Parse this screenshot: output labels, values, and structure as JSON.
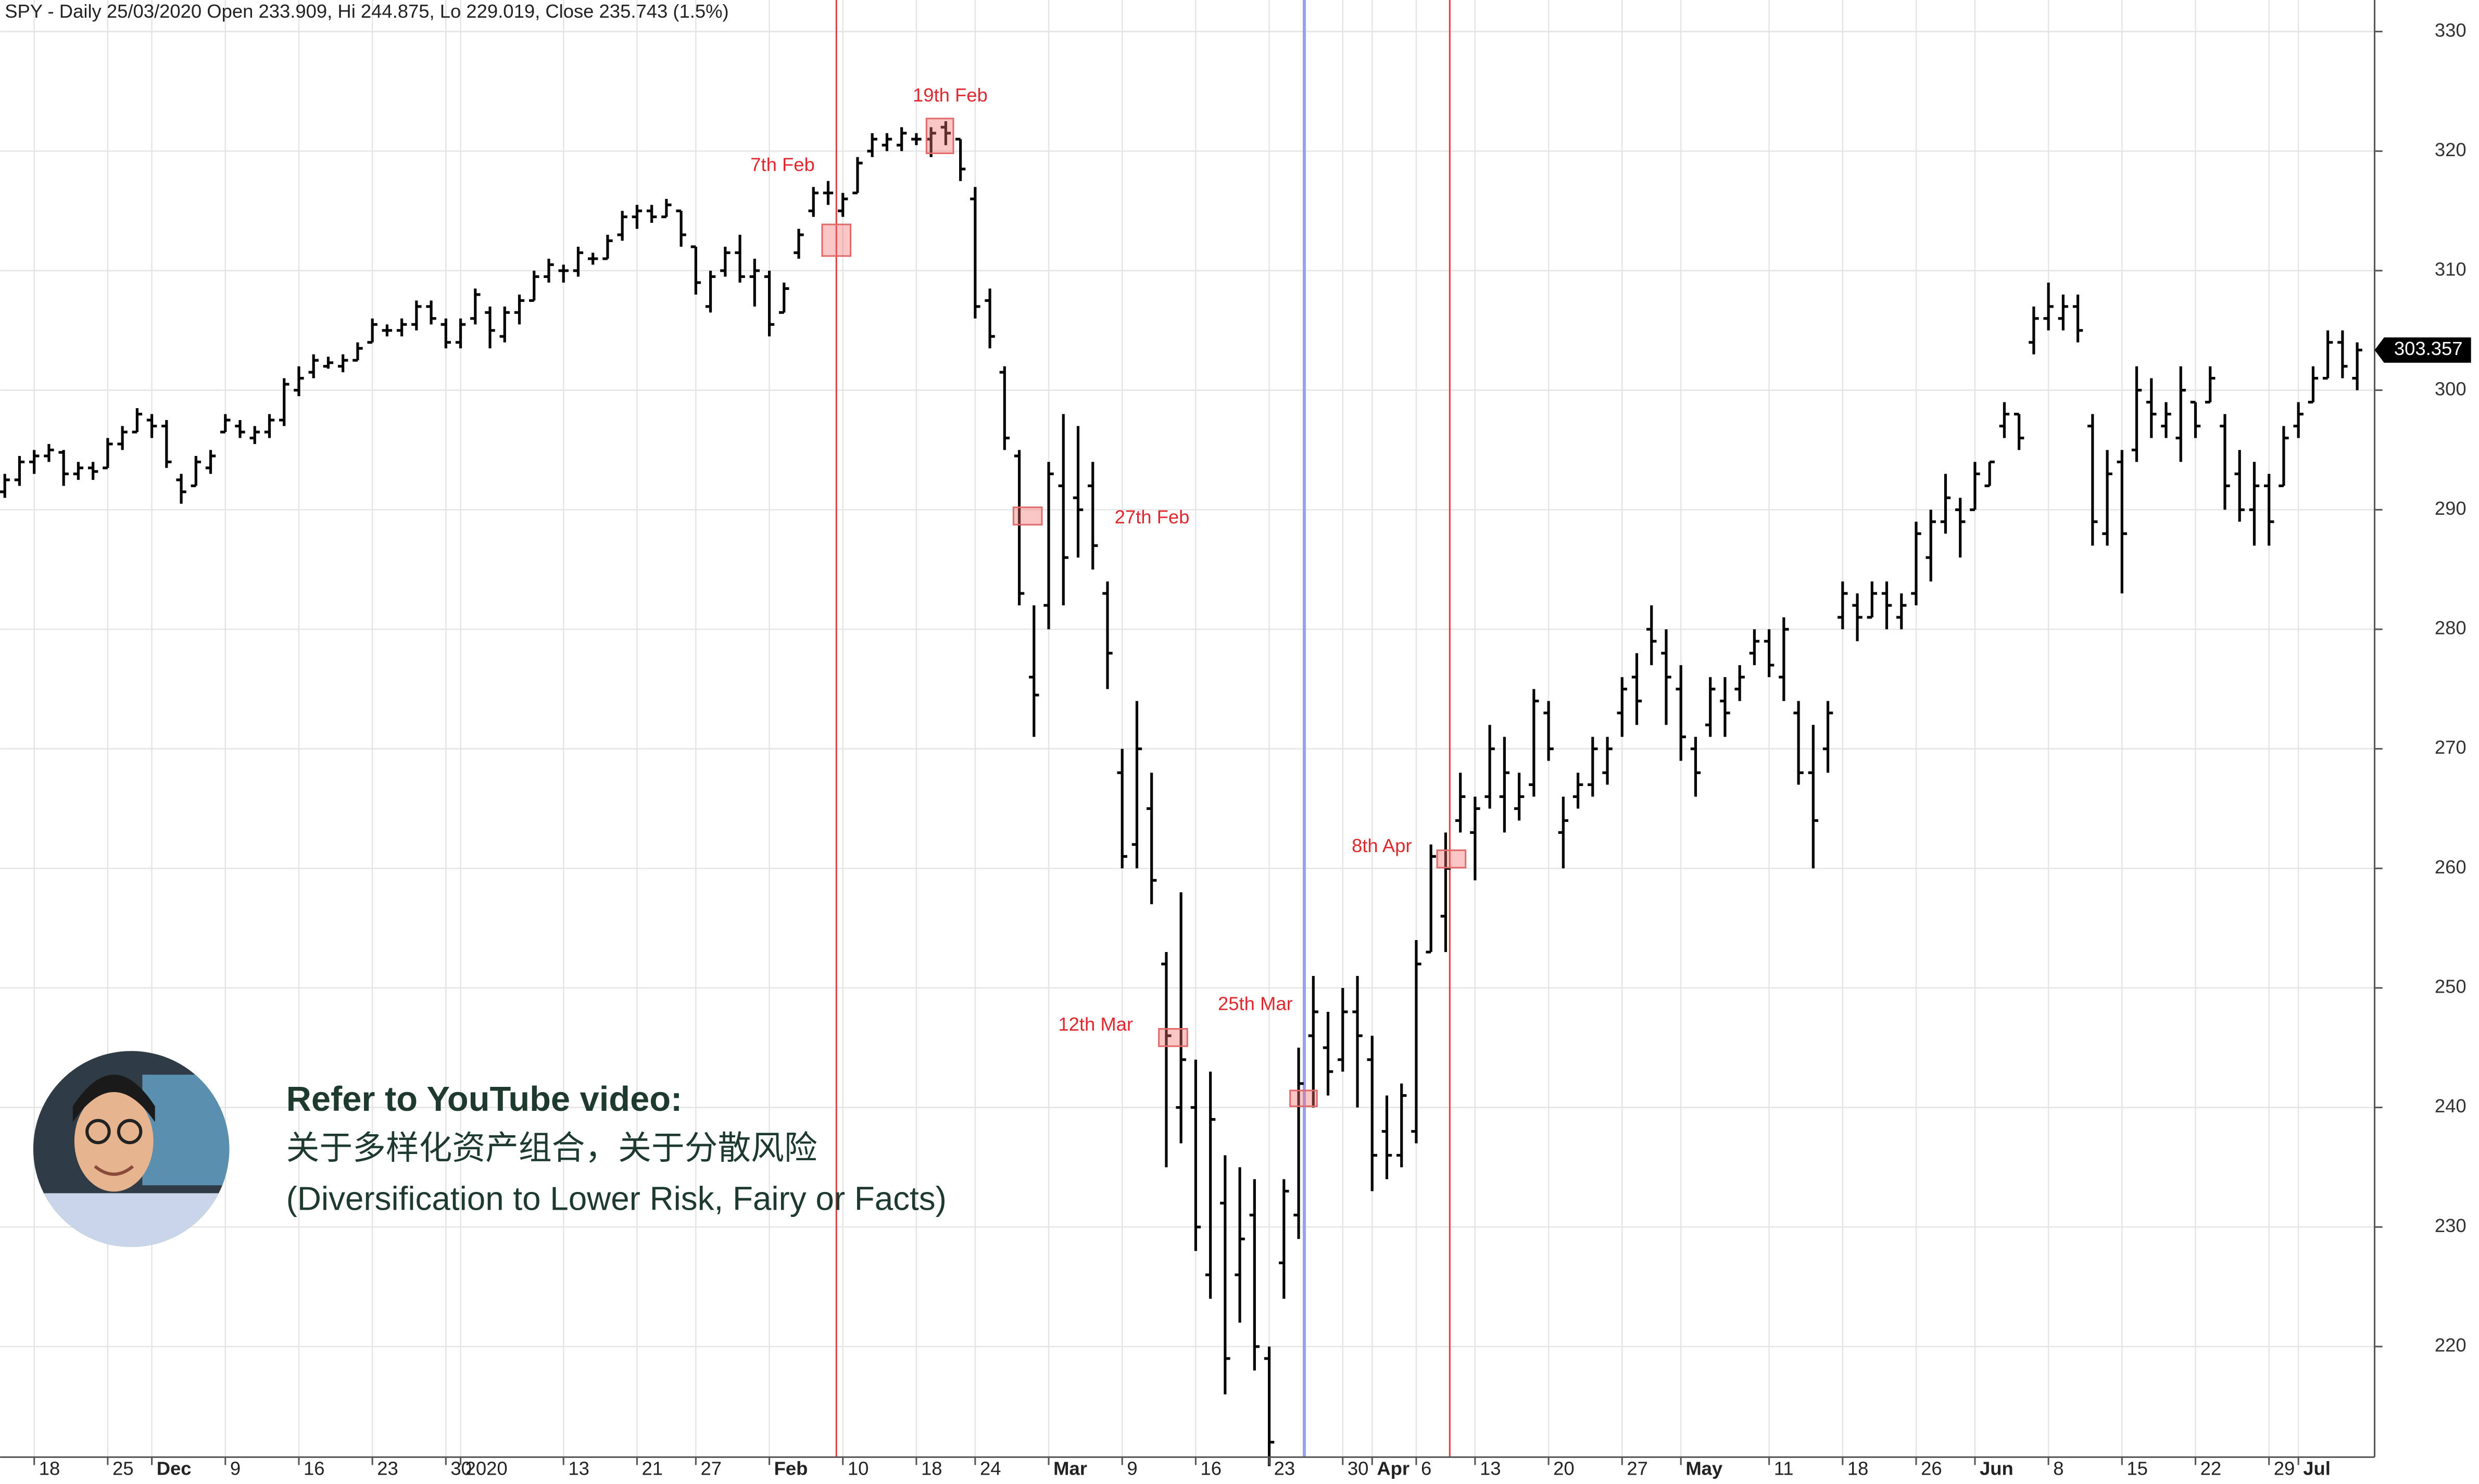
{
  "chart_data": {
    "type": "ohlc",
    "title": "SPY - Daily 25/03/2020 Open 233.909, Hi 244.875, Lo 229.019, Close 235.743 (1.5%)",
    "categories": [
      null,
      null,
      "18",
      null,
      null,
      null,
      null,
      "25",
      null,
      null,
      "Dec",
      null,
      null,
      null,
      null,
      "9",
      null,
      null,
      null,
      null,
      "16",
      null,
      null,
      null,
      null,
      "23",
      null,
      null,
      null,
      null,
      "30",
      "2020",
      null,
      null,
      null,
      null,
      null,
      null,
      "13",
      null,
      null,
      null,
      null,
      "21",
      null,
      null,
      null,
      "27",
      null,
      null,
      null,
      null,
      "Feb",
      null,
      null,
      null,
      null,
      "10",
      null,
      null,
      null,
      null,
      "18",
      null,
      null,
      null,
      "24",
      null,
      null,
      null,
      null,
      "Mar",
      null,
      null,
      null,
      null,
      "9",
      null,
      null,
      null,
      null,
      "16",
      null,
      null,
      null,
      null,
      "23",
      null,
      null,
      null,
      null,
      "30",
      null,
      "Apr",
      null,
      null,
      "6",
      null,
      null,
      null,
      "13",
      null,
      null,
      null,
      null,
      "20",
      null,
      null,
      null,
      null,
      "27",
      null,
      null,
      null,
      "May",
      null,
      null,
      null,
      null,
      null,
      "11",
      null,
      null,
      null,
      null,
      "18",
      null,
      null,
      null,
      null,
      "26",
      null,
      null,
      null,
      "Jun",
      null,
      null,
      null,
      null,
      "8",
      null,
      null,
      null,
      null,
      "15",
      null,
      null,
      null,
      null,
      "22",
      null,
      null,
      null,
      null,
      "29",
      null,
      "Jul",
      null,
      null,
      null,
      null
    ],
    "open": [
      291.5,
      292.5,
      294,
      294.5,
      294.8,
      293,
      293.5,
      293.5,
      295.5,
      296.5,
      297.5,
      297,
      292.5,
      292,
      293.5,
      296.5,
      297,
      296,
      296.5,
      297.5,
      300,
      301.5,
      302,
      302,
      302.5,
      304,
      305,
      305,
      305.5,
      307,
      305.5,
      304,
      306,
      306.5,
      304.5,
      306.5,
      307.5,
      309.5,
      310,
      310,
      311,
      311,
      313,
      314.5,
      315,
      314.5,
      315,
      312,
      307,
      310,
      311.5,
      309.5,
      309.5,
      306.5,
      311.5,
      315,
      316.5,
      315,
      316.5,
      320,
      320.5,
      320.5,
      321,
      321,
      322,
      321,
      316,
      307.5,
      301.5,
      294.5,
      276,
      282,
      292,
      291,
      292,
      283,
      268,
      262,
      265,
      252,
      240,
      240,
      226,
      232,
      226,
      231,
      219,
      227,
      231,
      246,
      245,
      244,
      248,
      244,
      238,
      236,
      238,
      253,
      256,
      264,
      263,
      266,
      266,
      265,
      267,
      273,
      263,
      266,
      267,
      268,
      273,
      276,
      280,
      278,
      275,
      270,
      272,
      274,
      275,
      278,
      279,
      276,
      273,
      268,
      270,
      281,
      282,
      281,
      283,
      281,
      283,
      286,
      289,
      290,
      290,
      292,
      297,
      298,
      304,
      306,
      306,
      307,
      297,
      288,
      294,
      295,
      299,
      297,
      296,
      299,
      299,
      297,
      293,
      290,
      292,
      292,
      297,
      299,
      301,
      304,
      301
    ],
    "high": [
      293,
      294.5,
      295,
      295.5,
      295,
      294,
      294,
      296,
      297,
      298.5,
      298,
      297.5,
      293,
      294.5,
      295,
      298,
      297.5,
      297,
      298,
      301,
      302,
      303,
      302.8,
      303,
      304,
      306,
      305.5,
      306,
      307.5,
      307.5,
      306,
      306,
      308.5,
      307,
      307,
      308,
      310,
      311,
      310.5,
      312,
      311.5,
      313,
      315,
      315.5,
      315.5,
      316,
      315,
      312,
      310,
      312,
      313,
      311,
      310,
      309,
      313.5,
      317,
      317.5,
      316.5,
      319.5,
      321.5,
      321.5,
      322,
      321.5,
      322,
      322.5,
      321,
      317,
      308.5,
      302,
      295,
      282,
      294,
      298,
      297,
      294,
      284,
      270,
      274,
      268,
      253,
      258,
      244,
      243,
      236,
      235,
      234,
      220,
      234,
      245,
      251,
      248,
      250,
      251,
      246,
      241,
      242,
      254,
      262,
      263,
      268,
      266,
      272,
      271,
      268,
      275,
      274,
      266,
      268,
      271,
      271,
      276,
      278,
      282,
      280,
      277,
      271,
      276,
      276,
      277,
      280,
      280,
      281,
      274,
      272,
      274,
      284,
      283,
      284,
      284,
      283,
      289,
      290,
      293,
      291,
      294,
      294,
      299,
      298,
      307,
      309,
      308,
      308,
      298,
      295,
      295,
      302,
      301,
      299,
      302,
      299,
      302,
      298,
      295,
      294,
      293,
      297,
      299,
      302,
      305,
      305,
      304
    ],
    "low": [
      291,
      292,
      293,
      294,
      292,
      292.5,
      292.5,
      293.5,
      295,
      296.5,
      296,
      293.5,
      290.5,
      292,
      293,
      296.5,
      296,
      295.5,
      296,
      297,
      299.5,
      301,
      301.8,
      301.5,
      302.5,
      304,
      304.5,
      304.5,
      305,
      305.5,
      303.5,
      303.5,
      305.5,
      303.5,
      304,
      305.5,
      307.5,
      309,
      309,
      309.5,
      310.5,
      311,
      312.5,
      313.5,
      314,
      314.5,
      312,
      308,
      306.5,
      309.5,
      309,
      307,
      304.5,
      306.5,
      311,
      314.5,
      315.5,
      314.5,
      316.5,
      319.5,
      320,
      320,
      320.5,
      319.5,
      320.5,
      317.5,
      306,
      303.5,
      295,
      282,
      271,
      280,
      282,
      286,
      285,
      275,
      260,
      260,
      257,
      235,
      237,
      228,
      224,
      216,
      222,
      218,
      210,
      224,
      229,
      240,
      241,
      243,
      240,
      233,
      234,
      235,
      237,
      253,
      253,
      263,
      259,
      265,
      263,
      264,
      266,
      269,
      260,
      265,
      266,
      267,
      271,
      272,
      277,
      272,
      269,
      266,
      271,
      271,
      274,
      277,
      276,
      274,
      267,
      260,
      268,
      280,
      279,
      281,
      280,
      280,
      282,
      284,
      288,
      286,
      290,
      292,
      296,
      295,
      303,
      305,
      305,
      304,
      287,
      287,
      283,
      294,
      296,
      296,
      294,
      296,
      299,
      290,
      289,
      287,
      287,
      292,
      296,
      299,
      301,
      301,
      300
    ],
    "close": [
      292.5,
      294,
      294.5,
      295,
      293,
      293.5,
      293.2,
      295.5,
      296.5,
      298,
      297,
      294,
      291.5,
      294,
      294.5,
      297.5,
      296.5,
      296.5,
      297.5,
      300.5,
      301,
      302.5,
      302.3,
      302.5,
      303.5,
      305.5,
      305,
      305.5,
      307,
      306,
      304,
      305.5,
      308,
      305,
      306.5,
      307.5,
      309.5,
      310.5,
      310,
      311.5,
      311,
      312.5,
      314.5,
      315,
      314.5,
      315.5,
      313,
      309,
      309.5,
      311.5,
      309.5,
      310,
      305.5,
      308.5,
      313,
      316.5,
      316.5,
      316,
      319,
      321,
      321,
      321.5,
      321,
      321.5,
      321.5,
      318.5,
      307,
      304.5,
      296,
      283,
      274.5,
      293,
      286,
      290,
      287,
      278,
      261,
      270,
      259,
      246,
      244,
      230,
      239,
      219,
      229,
      220,
      212,
      233,
      242,
      248,
      243,
      248,
      246,
      236,
      236,
      241,
      252,
      261,
      260,
      266,
      265,
      270,
      268,
      266,
      274,
      270,
      264,
      267,
      270,
      270,
      275,
      274,
      279,
      276,
      271,
      268,
      275,
      273,
      276,
      279,
      277,
      280,
      268,
      264,
      273,
      283,
      281,
      283,
      282,
      282,
      288,
      289,
      291,
      289,
      293,
      294,
      298,
      296,
      306,
      307,
      307,
      305,
      289,
      293,
      288,
      300,
      298,
      298,
      300,
      297,
      301,
      292,
      290,
      292,
      289,
      296,
      298,
      301,
      304,
      302,
      303.357
    ],
    "color": "#000000",
    "ylim": [
      210.75,
      332.64
    ],
    "yticks": [
      220,
      230,
      240,
      250,
      260,
      270,
      280,
      290,
      300,
      310,
      320,
      330
    ],
    "grid": true,
    "last_price": 303.357,
    "annotations": [
      "7th Feb",
      "19th Feb",
      "27th Feb",
      "12th Mar",
      "25th Mar",
      "8th Apr"
    ]
  },
  "overlay": {
    "heading": "Refer to YouTube video:",
    "subtitle_cn": "关于多样化资产组合，关于分散风险",
    "subtitle_en": "(Diversification to Lower Risk, Fairy or Facts)"
  }
}
